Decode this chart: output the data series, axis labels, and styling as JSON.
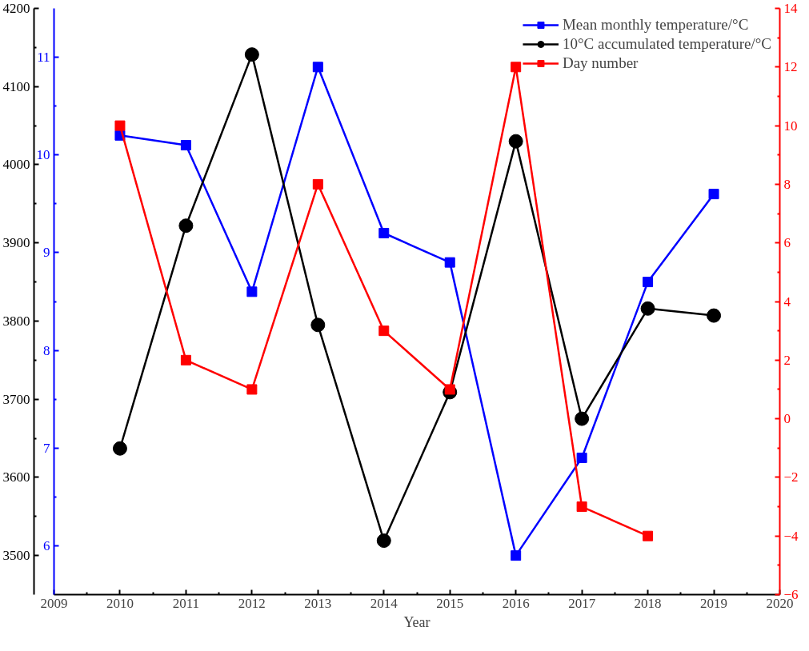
{
  "chart_data": {
    "type": "line",
    "xlabel": "Year",
    "x": [
      2010,
      2011,
      2012,
      2013,
      2014,
      2015,
      2016,
      2017,
      2018,
      2019
    ],
    "xlim": [
      2009,
      2020
    ],
    "xticks": [
      2009,
      2010,
      2011,
      2012,
      2013,
      2014,
      2015,
      2016,
      2017,
      2018,
      2019,
      2020
    ],
    "ylim": [
      5.5,
      11.5
    ],
    "yticks": [
      6,
      7,
      8,
      9,
      10,
      11
    ],
    "y2lim": [
      3450,
      4200
    ],
    "y2ticks": [
      3500,
      3600,
      3700,
      3800,
      3900,
      4000,
      4100,
      4200
    ],
    "y3lim": [
      -6,
      14
    ],
    "y3ticks": [
      -6,
      -4,
      -2,
      0,
      2,
      4,
      6,
      8,
      10,
      12,
      14
    ],
    "grid": false,
    "legend": "top right",
    "line_style": "solid",
    "series": [
      {
        "name": "Mean monthly temperature/°C",
        "color": "#0000ff",
        "marker": "square",
        "axis": "y",
        "values": [
          10.2,
          10.1,
          8.6,
          10.9,
          9.2,
          8.9,
          5.9,
          6.9,
          8.7,
          9.6
        ]
      },
      {
        "name": "10°C accumulated temperature/°C",
        "color": "#000000",
        "marker": "circle",
        "axis": "y2",
        "values": [
          3637,
          3922,
          4141,
          3795,
          3519,
          3709,
          4030,
          3675,
          3816,
          3807
        ]
      },
      {
        "name": "Day number",
        "color": "#ff0000",
        "marker": "square",
        "axis": "y3",
        "values": [
          10,
          2,
          1,
          8,
          3,
          1,
          12,
          -3,
          -4,
          null
        ]
      }
    ]
  }
}
